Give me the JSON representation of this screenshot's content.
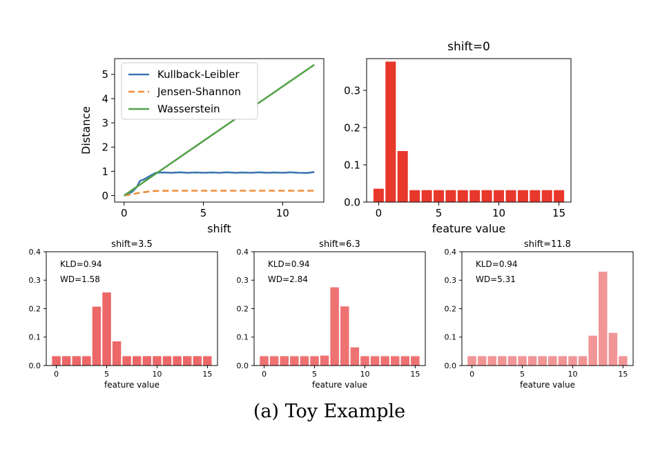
{
  "caption": "(a) Toy Example",
  "chart_data": [
    {
      "type": "line",
      "title": "",
      "xlabel": "shift",
      "ylabel": "Distance",
      "xlim": [
        -0.6,
        12.6
      ],
      "ylim": [
        -0.27,
        5.65
      ],
      "xticks": [
        0,
        5,
        10
      ],
      "yticks": [
        0,
        1,
        2,
        3,
        4,
        5
      ],
      "grid": false,
      "legend": "top-left",
      "series": [
        {
          "name": "Kullback-Leibler",
          "color": "#3a75b0",
          "style": "solid",
          "x": [
            0,
            0.5,
            0.8,
            1,
            1.3,
            1.6,
            2,
            2.5,
            3,
            3.5,
            4,
            4.5,
            5,
            5.5,
            6,
            6.5,
            7,
            7.5,
            8,
            8.5,
            9,
            9.5,
            10,
            10.5,
            11,
            11.5,
            12
          ],
          "y": [
            0,
            0.15,
            0.35,
            0.6,
            0.68,
            0.8,
            0.94,
            0.95,
            0.94,
            0.96,
            0.94,
            0.95,
            0.94,
            0.95,
            0.94,
            0.96,
            0.94,
            0.95,
            0.94,
            0.96,
            0.94,
            0.95,
            0.94,
            0.96,
            0.94,
            0.93,
            0.97
          ]
        },
        {
          "name": "Jensen-Shannon",
          "color": "#ef8c36",
          "style": "dashed",
          "x": [
            0,
            0.5,
            1,
            1.5,
            2,
            3,
            4,
            5,
            6,
            7,
            8,
            9,
            10,
            11,
            12
          ],
          "y": [
            0,
            0.05,
            0.12,
            0.16,
            0.19,
            0.2,
            0.2,
            0.2,
            0.2,
            0.2,
            0.2,
            0.2,
            0.2,
            0.2,
            0.2
          ]
        },
        {
          "name": "Wasserstein",
          "color": "#55a24a",
          "style": "solid",
          "x": [
            0,
            12
          ],
          "y": [
            0,
            5.4
          ]
        }
      ]
    },
    {
      "type": "bar",
      "title": "shift=0",
      "xlabel": "feature value",
      "ylabel": "",
      "categories": [
        0,
        1,
        2,
        3,
        4,
        5,
        6,
        7,
        8,
        9,
        10,
        11,
        12,
        13,
        14,
        15
      ],
      "values": [
        0.036,
        0.377,
        0.137,
        0.032,
        0.032,
        0.032,
        0.032,
        0.032,
        0.032,
        0.032,
        0.032,
        0.032,
        0.032,
        0.032,
        0.032,
        0.032
      ],
      "xlim": [
        -1,
        16
      ],
      "ylim": [
        0,
        0.385
      ],
      "xticks": [
        0,
        5,
        10,
        15
      ],
      "yticks": [
        0.0,
        0.1,
        0.2,
        0.3
      ],
      "color": "#e8372b",
      "annotations": []
    },
    {
      "type": "bar",
      "title": "shift=3.5",
      "xlabel": "feature value",
      "ylabel": "",
      "categories": [
        0,
        1,
        2,
        3,
        4,
        5,
        6,
        7,
        8,
        9,
        10,
        11,
        12,
        13,
        14,
        15
      ],
      "values": [
        0.033,
        0.033,
        0.033,
        0.033,
        0.207,
        0.257,
        0.085,
        0.033,
        0.033,
        0.033,
        0.033,
        0.033,
        0.033,
        0.033,
        0.033,
        0.033
      ],
      "xlim": [
        -1,
        16
      ],
      "ylim": [
        0,
        0.4
      ],
      "xticks": [
        0,
        5,
        10,
        15
      ],
      "yticks": [
        0.0,
        0.1,
        0.2,
        0.3,
        0.4
      ],
      "color": "#ec6768",
      "annotations": [
        "KLD=0.94",
        "WD=1.58"
      ]
    },
    {
      "type": "bar",
      "title": "shift=6.3",
      "xlabel": "feature value",
      "ylabel": "",
      "categories": [
        0,
        1,
        2,
        3,
        4,
        5,
        6,
        7,
        8,
        9,
        10,
        11,
        12,
        13,
        14,
        15
      ],
      "values": [
        0.033,
        0.033,
        0.033,
        0.033,
        0.033,
        0.033,
        0.035,
        0.275,
        0.208,
        0.064,
        0.033,
        0.033,
        0.033,
        0.033,
        0.033,
        0.033
      ],
      "xlim": [
        -1,
        16
      ],
      "ylim": [
        0,
        0.4
      ],
      "xticks": [
        0,
        5,
        10,
        15
      ],
      "yticks": [
        0.0,
        0.1,
        0.2,
        0.3,
        0.4
      ],
      "color": "#ef7273",
      "annotations": [
        "KLD=0.94",
        "WD=2.84"
      ]
    },
    {
      "type": "bar",
      "title": "shift=11.8",
      "xlabel": "feature value",
      "ylabel": "",
      "categories": [
        0,
        1,
        2,
        3,
        4,
        5,
        6,
        7,
        8,
        9,
        10,
        11,
        12,
        13,
        14,
        15
      ],
      "values": [
        0.033,
        0.033,
        0.033,
        0.033,
        0.033,
        0.033,
        0.033,
        0.033,
        0.033,
        0.033,
        0.033,
        0.033,
        0.105,
        0.33,
        0.115,
        0.033
      ],
      "xlim": [
        -1,
        16
      ],
      "ylim": [
        0,
        0.4
      ],
      "xticks": [
        0,
        5,
        10,
        15
      ],
      "yticks": [
        0.0,
        0.1,
        0.2,
        0.3,
        0.4
      ],
      "color": "#f19597",
      "annotations": [
        "KLD=0.94",
        "WD=5.31"
      ]
    }
  ]
}
